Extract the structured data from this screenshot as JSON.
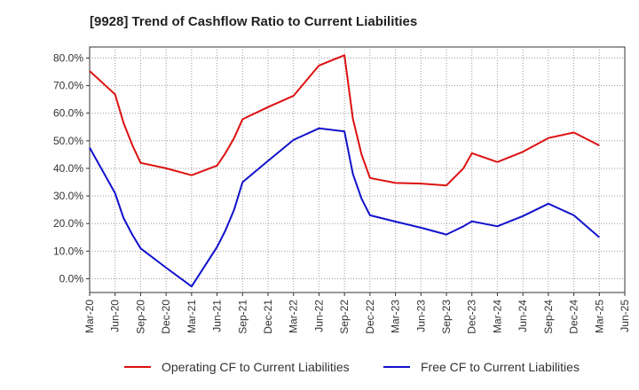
{
  "chart_data": {
    "type": "line",
    "title": "[9928]  Trend of Cashflow Ratio to Current Liabilities",
    "xlabel": "",
    "ylabel": "",
    "x_tick_labels": [
      "Mar-20",
      "Jun-20",
      "Sep-20",
      "Dec-20",
      "Mar-21",
      "Jun-21",
      "Sep-21",
      "Dec-21",
      "Mar-22",
      "Jun-22",
      "Sep-22",
      "Dec-22",
      "Mar-23",
      "Jun-23",
      "Sep-23",
      "Dec-23",
      "Mar-24",
      "Jun-24",
      "Sep-24",
      "Dec-24",
      "Mar-25",
      "Jun-25"
    ],
    "y_ticks": [
      0,
      10,
      20,
      30,
      40,
      50,
      60,
      70,
      80
    ],
    "y_tick_labels": [
      "0.0%",
      "10.0%",
      "20.0%",
      "30.0%",
      "40.0%",
      "50.0%",
      "60.0%",
      "70.0%",
      "80.0%"
    ],
    "ylim": [
      -5,
      84
    ],
    "grid": true,
    "legend_position": "bottom",
    "series": [
      {
        "name": "Operating CF to Current Liabilities",
        "color": "#dd1111",
        "points": [
          [
            0,
            75.3
          ],
          [
            1,
            66.8
          ],
          [
            1.33,
            56.5
          ],
          [
            1.67,
            48.5
          ],
          [
            2,
            42.0
          ],
          [
            3,
            40.0
          ],
          [
            4,
            37.5
          ],
          [
            5,
            41.0
          ],
          [
            5.33,
            45.5
          ],
          [
            5.67,
            51.0
          ],
          [
            6,
            57.8
          ],
          [
            7,
            62.2
          ],
          [
            8,
            66.3
          ],
          [
            9,
            77.3
          ],
          [
            10,
            81.0
          ],
          [
            10.33,
            58.0
          ],
          [
            10.67,
            45.0
          ],
          [
            11,
            36.5
          ],
          [
            12,
            34.7
          ],
          [
            13,
            34.5
          ],
          [
            14,
            33.8
          ],
          [
            14.67,
            40.0
          ],
          [
            15,
            45.5
          ],
          [
            16,
            42.3
          ],
          [
            17,
            46.0
          ],
          [
            18,
            51.0
          ],
          [
            19,
            53.0
          ],
          [
            20,
            48.3
          ]
        ]
      },
      {
        "name": "Free CF to Current Liabilities",
        "color": "#1111cc",
        "points": [
          [
            0,
            47.5
          ],
          [
            1,
            31.0
          ],
          [
            1.33,
            22.0
          ],
          [
            1.67,
            16.0
          ],
          [
            2,
            11.0
          ],
          [
            3,
            4.0
          ],
          [
            4,
            -2.8
          ],
          [
            5,
            11.5
          ],
          [
            5.33,
            17.5
          ],
          [
            5.67,
            25.0
          ],
          [
            6,
            35.0
          ],
          [
            7,
            42.7
          ],
          [
            8,
            50.3
          ],
          [
            9,
            54.5
          ],
          [
            10,
            53.4
          ],
          [
            10.33,
            38.0
          ],
          [
            10.67,
            29.0
          ],
          [
            11,
            23.0
          ],
          [
            12,
            20.7
          ],
          [
            13,
            18.5
          ],
          [
            14,
            16.0
          ],
          [
            14.67,
            19.0
          ],
          [
            15,
            20.8
          ],
          [
            16,
            19.0
          ],
          [
            17,
            22.7
          ],
          [
            18,
            27.2
          ],
          [
            19,
            23.0
          ],
          [
            20,
            15.0
          ]
        ]
      }
    ]
  }
}
